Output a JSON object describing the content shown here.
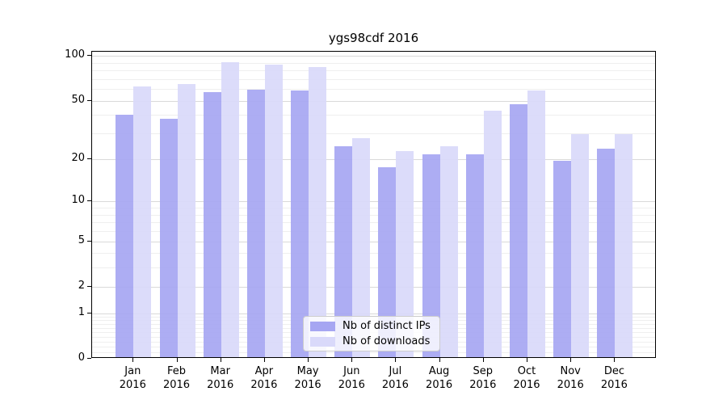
{
  "title": "ygs98cdf 2016",
  "chart_data": {
    "type": "bar",
    "title": "ygs98cdf 2016",
    "categories": [
      "Jan",
      "Feb",
      "Mar",
      "Apr",
      "May",
      "Jun",
      "Jul",
      "Aug",
      "Sep",
      "Oct",
      "Nov",
      "Dec"
    ],
    "x_year_line": "2016",
    "series": [
      {
        "name": "Nb of distinct IPs",
        "color": "#a6a6f2",
        "values": [
          39,
          37,
          56,
          58,
          57,
          24,
          17,
          21,
          21,
          46,
          19,
          23
        ]
      },
      {
        "name": "Nb of downloads",
        "color": "#d9d9fa",
        "values": [
          61,
          63,
          89,
          85,
          82,
          27,
          22,
          24,
          42,
          57,
          29,
          29
        ]
      }
    ],
    "y_scale": "log10(1+v)",
    "ylim": [
      0,
      107
    ],
    "y_major_ticks": [
      100,
      50,
      20,
      10,
      5,
      2,
      1,
      0
    ],
    "y_minor_ticks": [
      90,
      80,
      70,
      60,
      40,
      30,
      9,
      8,
      7,
      6,
      4,
      3,
      0.9,
      0.8,
      0.7,
      0.6,
      0.5,
      0.4,
      0.3,
      0.2,
      0.1
    ],
    "grid": true,
    "legend_position": "lower center",
    "colors": {
      "axis": "#000000",
      "grid_major": "#d9d9d9",
      "grid_minor": "#efefef",
      "background": "#ffffff"
    }
  }
}
